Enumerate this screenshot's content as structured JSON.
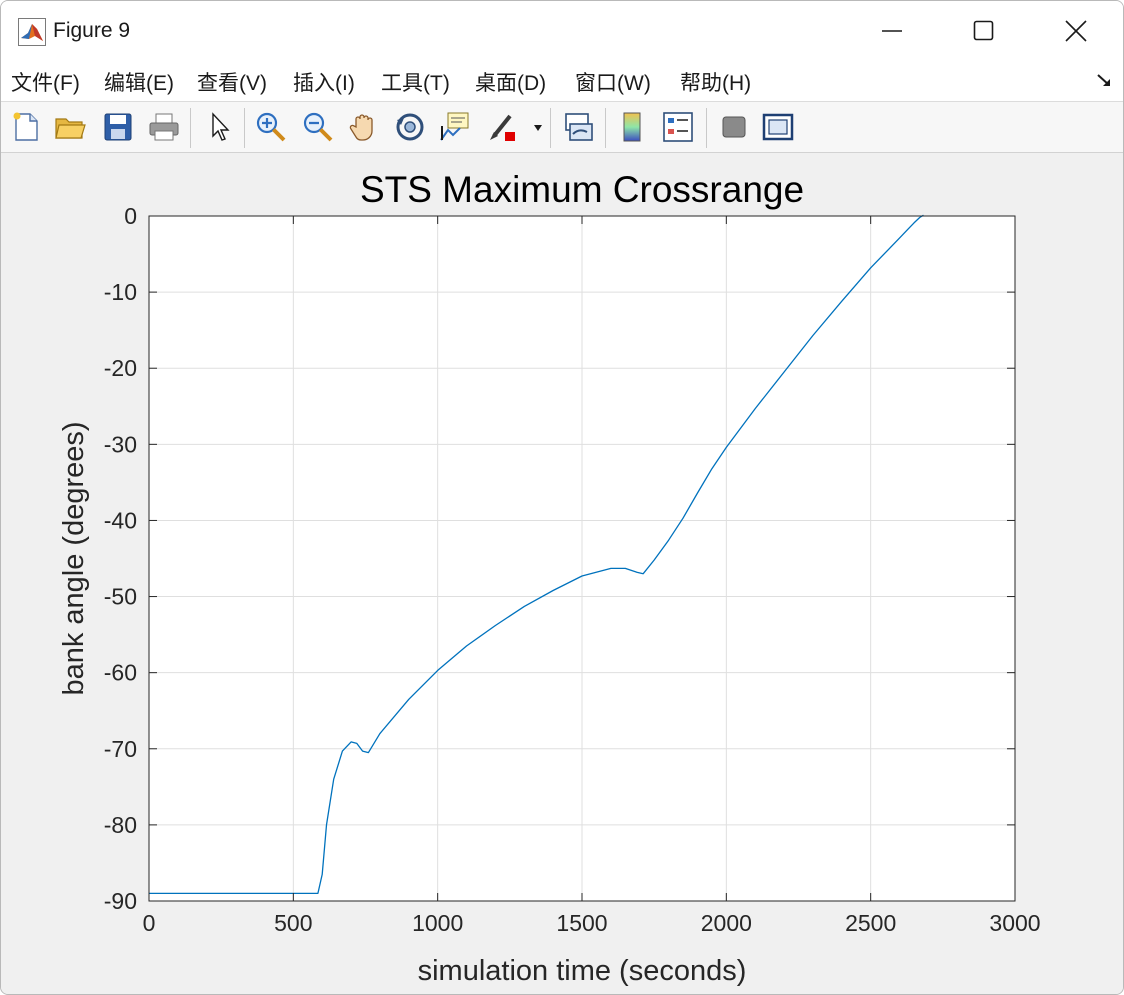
{
  "window": {
    "title": "Figure 9",
    "buttons": [
      "minimize",
      "maximize",
      "close"
    ]
  },
  "menu": {
    "items": [
      "文件(F)",
      "编辑(E)",
      "查看(V)",
      "插入(I)",
      "工具(T)",
      "桌面(D)",
      "窗口(W)",
      "帮助(H)"
    ]
  },
  "toolbar": {
    "icons": [
      "new-figure-icon",
      "open-file-icon",
      "save-icon",
      "print-icon",
      "pointer-icon",
      "zoom-in-icon",
      "zoom-out-icon",
      "pan-icon",
      "rotate-3d-icon",
      "data-cursor-icon",
      "brush-icon",
      "link-plot-icon",
      "colorbar-icon",
      "legend-icon",
      "hide-plot-tools-icon",
      "show-plot-tools-icon"
    ]
  },
  "colors": {
    "line": "#0072BD",
    "grid": "#dfdfdf",
    "axes": "#262626",
    "figure_bg": "#f0f0f0"
  },
  "chart_data": {
    "type": "line",
    "title": "STS Maximum Crossrange",
    "xlabel": "simulation time (seconds)",
    "ylabel": "bank angle (degrees)",
    "xlim": [
      0,
      3000
    ],
    "ylim": [
      -90,
      0
    ],
    "xticks": [
      0,
      500,
      1000,
      1500,
      2000,
      2500,
      3000
    ],
    "yticks": [
      0,
      -10,
      -20,
      -30,
      -40,
      -50,
      -60,
      -70,
      -80,
      -90
    ],
    "xtick_labels": [
      "0",
      "500",
      "1000",
      "1500",
      "2000",
      "2500",
      "3000"
    ],
    "ytick_labels": [
      "0",
      "-10",
      "-20",
      "-30",
      "-40",
      "-50",
      "-60",
      "-70",
      "-80",
      "-90"
    ],
    "grid": true,
    "series": [
      {
        "x": [
          0,
          300,
          585,
          600,
          615,
          640,
          670,
          700,
          720,
          740,
          760,
          800,
          900,
          1000,
          1100,
          1200,
          1300,
          1400,
          1500,
          1600,
          1650,
          1690,
          1712,
          1750,
          1800,
          1850,
          1900,
          1950,
          2000,
          2100,
          2200,
          2300,
          2400,
          2500,
          2600,
          2630,
          2650,
          2670,
          2683
        ],
        "y": [
          -89.0,
          -89.0,
          -89.0,
          -86.5,
          -80.0,
          -74.0,
          -70.3,
          -69.1,
          -69.3,
          -70.3,
          -70.5,
          -68.0,
          -63.5,
          -59.7,
          -56.5,
          -53.8,
          -51.3,
          -49.2,
          -47.3,
          -46.3,
          -46.3,
          -46.8,
          -47.0,
          -45.2,
          -42.6,
          -39.7,
          -36.4,
          -33.2,
          -30.4,
          -25.3,
          -20.5,
          -15.7,
          -11.2,
          -6.8,
          -2.9,
          -1.7,
          -0.9,
          -0.2,
          0.1
        ]
      }
    ]
  }
}
